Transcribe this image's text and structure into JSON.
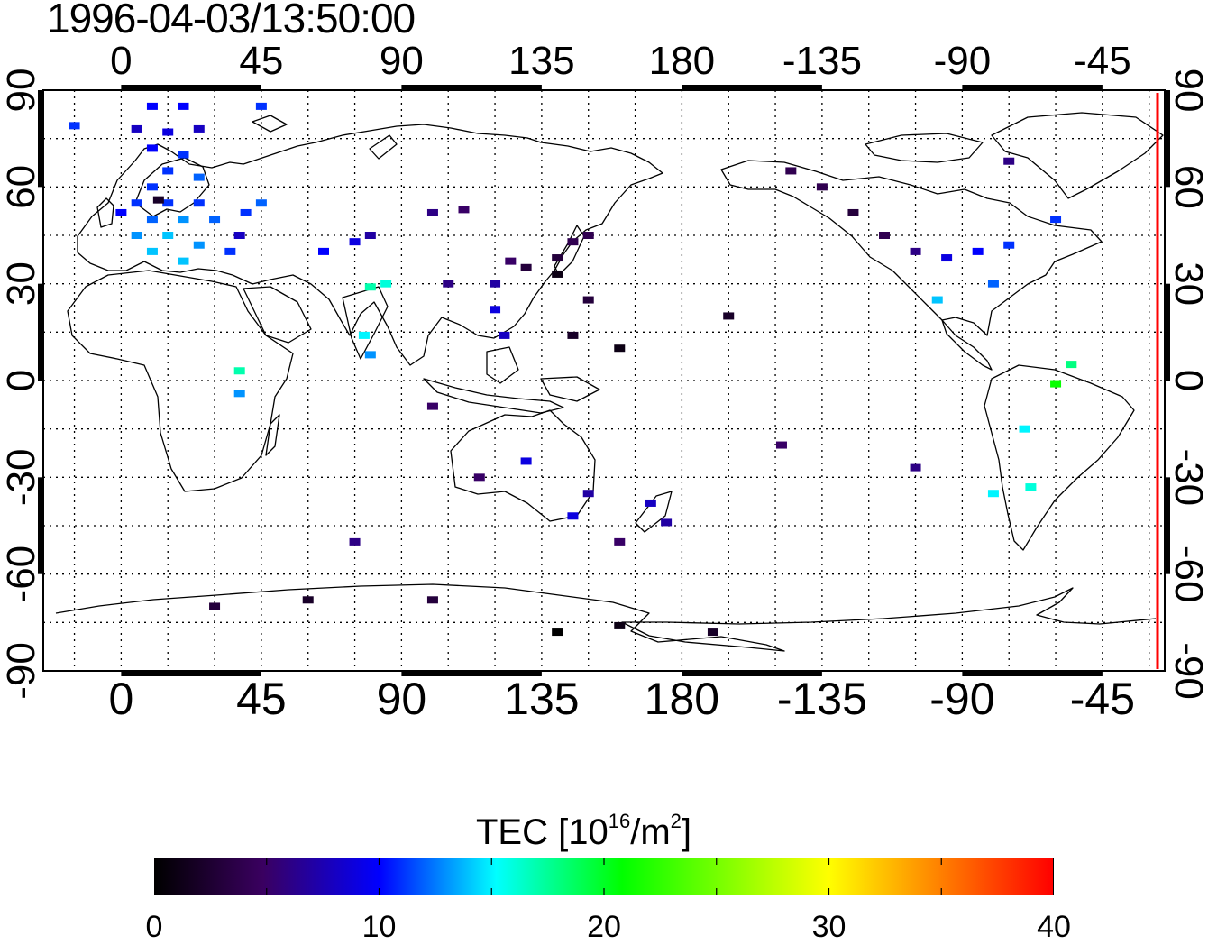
{
  "title": "1996-04-03/13:50:00",
  "map": {
    "top_longitude_labels": [
      "0",
      "45",
      "90",
      "135",
      "180",
      "-135",
      "-90",
      "-45"
    ],
    "bottom_longitude_labels": [
      "0",
      "45",
      "90",
      "135",
      "180",
      "-135",
      "-90",
      "-45"
    ],
    "left_latitude_labels": [
      "90",
      "60",
      "30",
      "0",
      "-30",
      "-60",
      "-90"
    ],
    "right_latitude_labels": [
      "90",
      "60",
      "30",
      "0",
      "-30",
      "-60",
      "-90"
    ],
    "grid": "dotted",
    "terminator_color": "#ff0000",
    "coastline_color": "#000000"
  },
  "colorbar": {
    "label_main": "TEC  [10",
    "label_exp": "16",
    "label_mid": "/m",
    "label_exp2": "2",
    "label_close": "]",
    "tick_labels": [
      "0",
      "10",
      "20",
      "30",
      "40"
    ],
    "colors": [
      "#000000",
      "#3a0060",
      "#0000ff",
      "#00ffff",
      "#00ff00",
      "#ffff00",
      "#ff0000"
    ]
  },
  "chart_data": {
    "type": "heatmap",
    "title": "1996-04-03/13:50:00",
    "value_label": "TEC [10^16/m^2]",
    "value_range": [
      0,
      40
    ],
    "x_axis": "longitude",
    "y_axis": "latitude",
    "xlim": [
      -25,
      335
    ],
    "ylim": [
      -90,
      90
    ],
    "points": [
      {
        "lon": 10,
        "lat": 85,
        "tec": 10
      },
      {
        "lon": 20,
        "lat": 85,
        "tec": 10
      },
      {
        "lon": 45,
        "lat": 85,
        "tec": 11
      },
      {
        "lon": -15,
        "lat": 79,
        "tec": 11
      },
      {
        "lon": 5,
        "lat": 78,
        "tec": 8
      },
      {
        "lon": 15,
        "lat": 77,
        "tec": 9
      },
      {
        "lon": 25,
        "lat": 78,
        "tec": 8
      },
      {
        "lon": 10,
        "lat": 72,
        "tec": 10
      },
      {
        "lon": 20,
        "lat": 70,
        "tec": 11
      },
      {
        "lon": 15,
        "lat": 65,
        "tec": 11
      },
      {
        "lon": 25,
        "lat": 63,
        "tec": 12
      },
      {
        "lon": 10,
        "lat": 60,
        "tec": 11
      },
      {
        "lon": 5,
        "lat": 55,
        "tec": 11
      },
      {
        "lon": 15,
        "lat": 55,
        "tec": 11
      },
      {
        "lon": 25,
        "lat": 55,
        "tec": 11
      },
      {
        "lon": 12,
        "lat": 56,
        "tec": 2
      },
      {
        "lon": 0,
        "lat": 52,
        "tec": 10
      },
      {
        "lon": 10,
        "lat": 50,
        "tec": 12
      },
      {
        "lon": 20,
        "lat": 50,
        "tec": 13
      },
      {
        "lon": 30,
        "lat": 50,
        "tec": 12
      },
      {
        "lon": 5,
        "lat": 45,
        "tec": 13
      },
      {
        "lon": 15,
        "lat": 45,
        "tec": 14
      },
      {
        "lon": 25,
        "lat": 42,
        "tec": 13
      },
      {
        "lon": 10,
        "lat": 40,
        "tec": 14
      },
      {
        "lon": 20,
        "lat": 37,
        "tec": 14
      },
      {
        "lon": 35,
        "lat": 40,
        "tec": 11
      },
      {
        "lon": 40,
        "lat": 52,
        "tec": 11
      },
      {
        "lon": 45,
        "lat": 55,
        "tec": 12
      },
      {
        "lon": 38,
        "lat": 45,
        "tec": 8
      },
      {
        "lon": 65,
        "lat": 40,
        "tec": 10
      },
      {
        "lon": 75,
        "lat": 43,
        "tec": 9
      },
      {
        "lon": 80,
        "lat": 45,
        "tec": 7
      },
      {
        "lon": 85,
        "lat": 30,
        "tec": 16
      },
      {
        "lon": 80,
        "lat": 29,
        "tec": 17
      },
      {
        "lon": 78,
        "lat": 14,
        "tec": 15
      },
      {
        "lon": 80,
        "lat": 8,
        "tec": 13
      },
      {
        "lon": 38,
        "lat": 3,
        "tec": 17
      },
      {
        "lon": 38,
        "lat": -4,
        "tec": 13
      },
      {
        "lon": 100,
        "lat": 52,
        "tec": 6
      },
      {
        "lon": 110,
        "lat": 53,
        "tec": 5
      },
      {
        "lon": 105,
        "lat": 30,
        "tec": 6
      },
      {
        "lon": 120,
        "lat": 30,
        "tec": 7
      },
      {
        "lon": 125,
        "lat": 37,
        "tec": 5
      },
      {
        "lon": 130,
        "lat": 35,
        "tec": 3
      },
      {
        "lon": 140,
        "lat": 38,
        "tec": 3
      },
      {
        "lon": 145,
        "lat": 43,
        "tec": 4
      },
      {
        "lon": 140,
        "lat": 33,
        "tec": 1
      },
      {
        "lon": 150,
        "lat": 45,
        "tec": 4
      },
      {
        "lon": 120,
        "lat": 22,
        "tec": 9
      },
      {
        "lon": 123,
        "lat": 14,
        "tec": 8
      },
      {
        "lon": 145,
        "lat": 14,
        "tec": 2
      },
      {
        "lon": 150,
        "lat": 25,
        "tec": 3
      },
      {
        "lon": 160,
        "lat": 10,
        "tec": 1
      },
      {
        "lon": 100,
        "lat": -8,
        "tec": 5
      },
      {
        "lon": 115,
        "lat": -30,
        "tec": 5
      },
      {
        "lon": 130,
        "lat": -25,
        "tec": 9
      },
      {
        "lon": 150,
        "lat": -35,
        "tec": 7
      },
      {
        "lon": 145,
        "lat": -42,
        "tec": 9
      },
      {
        "lon": 170,
        "lat": -38,
        "tec": 8
      },
      {
        "lon": 175,
        "lat": -44,
        "tec": 7
      },
      {
        "lon": 160,
        "lat": -50,
        "tec": 5
      },
      {
        "lon": 75,
        "lat": -50,
        "tec": 6
      },
      {
        "lon": 195,
        "lat": 20,
        "tec": 2
      },
      {
        "lon": 212,
        "lat": -20,
        "tec": 5
      },
      {
        "lon": 215,
        "lat": 65,
        "tec": 4
      },
      {
        "lon": 225,
        "lat": 60,
        "tec": 4
      },
      {
        "lon": 235,
        "lat": 52,
        "tec": 3
      },
      {
        "lon": 245,
        "lat": 45,
        "tec": 4
      },
      {
        "lon": 255,
        "lat": 40,
        "tec": 6
      },
      {
        "lon": 265,
        "lat": 38,
        "tec": 9
      },
      {
        "lon": 275,
        "lat": 40,
        "tec": 10
      },
      {
        "lon": 285,
        "lat": 42,
        "tec": 11
      },
      {
        "lon": 280,
        "lat": 30,
        "tec": 12
      },
      {
        "lon": 262,
        "lat": 25,
        "tec": 14
      },
      {
        "lon": 285,
        "lat": 68,
        "tec": 6
      },
      {
        "lon": 300,
        "lat": 50,
        "tec": 11
      },
      {
        "lon": 305,
        "lat": 5,
        "tec": 18
      },
      {
        "lon": 300,
        "lat": -1,
        "tec": 21
      },
      {
        "lon": 290,
        "lat": -15,
        "tec": 15
      },
      {
        "lon": 292,
        "lat": -33,
        "tec": 16
      },
      {
        "lon": 280,
        "lat": -35,
        "tec": 15
      },
      {
        "lon": 255,
        "lat": -27,
        "tec": 6
      },
      {
        "lon": 30,
        "lat": -70,
        "tec": 3
      },
      {
        "lon": 60,
        "lat": -68,
        "tec": 2
      },
      {
        "lon": 100,
        "lat": -68,
        "tec": 3
      },
      {
        "lon": 140,
        "lat": -78,
        "tec": 0
      },
      {
        "lon": 160,
        "lat": -76,
        "tec": 1
      },
      {
        "lon": 190,
        "lat": -78,
        "tec": 2
      }
    ]
  }
}
